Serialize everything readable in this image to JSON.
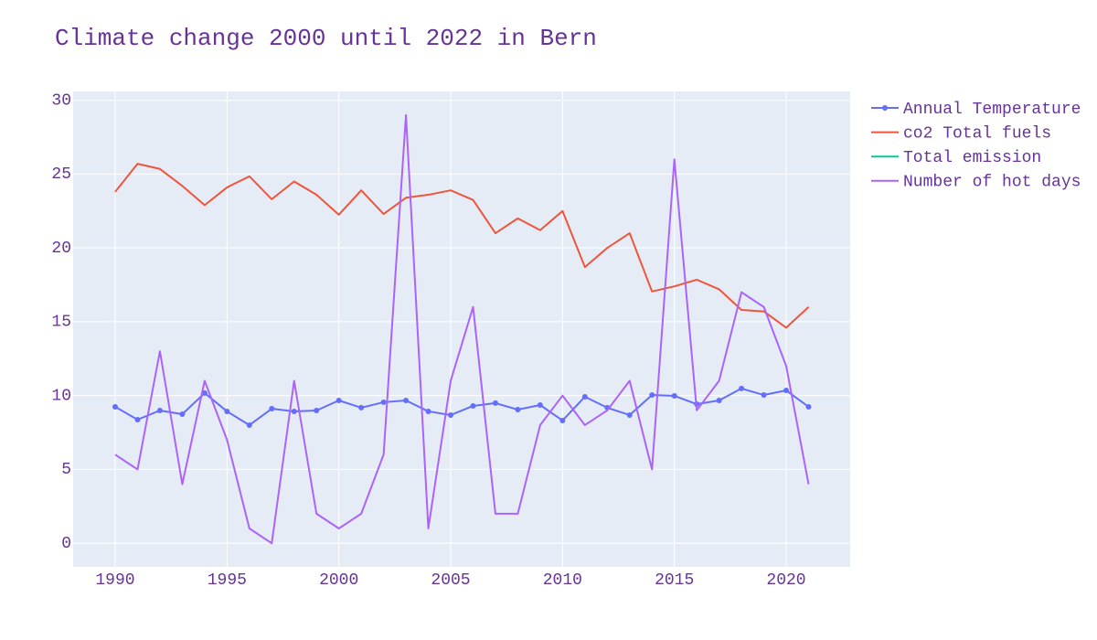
{
  "chart_data": {
    "type": "line",
    "title": "Climate change 2000 until 2022 in Bern",
    "x": [
      1990,
      1991,
      1992,
      1993,
      1994,
      1995,
      1996,
      1997,
      1998,
      1999,
      2000,
      2001,
      2002,
      2003,
      2004,
      2005,
      2006,
      2007,
      2008,
      2009,
      2010,
      2011,
      2012,
      2013,
      2014,
      2015,
      2016,
      2017,
      2018,
      2019,
      2020,
      2021
    ],
    "series": [
      {
        "name": "Annual Temperature",
        "color": "#636efa",
        "markers": true,
        "values": [
          9.24,
          8.37,
          8.99,
          8.74,
          10.17,
          8.93,
          8.0,
          9.11,
          8.93,
          8.99,
          9.67,
          9.18,
          9.55,
          9.67,
          8.93,
          8.68,
          9.3,
          9.49,
          9.05,
          9.36,
          8.31,
          9.92,
          9.18,
          8.68,
          10.04,
          9.98,
          9.42,
          9.67,
          10.48,
          10.04,
          10.35,
          9.24
        ]
      },
      {
        "name": "co2 Total fuels",
        "color": "#EF553B",
        "markers": false,
        "values": [
          23.8,
          25.7,
          25.35,
          24.2,
          22.9,
          24.1,
          24.85,
          23.3,
          24.5,
          23.6,
          22.25,
          23.9,
          22.3,
          23.4,
          23.6,
          23.9,
          23.25,
          21.0,
          22.0,
          21.2,
          22.5,
          18.7,
          20.0,
          21.0,
          17.05,
          17.4,
          17.85,
          17.2,
          15.8,
          15.7,
          14.6,
          16.0
        ]
      },
      {
        "name": "Total emission",
        "color": "#00cc96",
        "markers": false,
        "values": [
          null,
          null,
          null,
          null,
          null,
          null,
          null,
          null,
          null,
          null,
          null,
          null,
          null,
          null,
          null,
          null,
          null,
          null,
          null,
          null,
          null,
          null,
          null,
          null,
          null,
          null,
          null,
          null,
          null,
          null,
          null,
          null
        ]
      },
      {
        "name": "Number of hot days",
        "color": "#ab63fa",
        "markers": false,
        "values": [
          6,
          5,
          13,
          4,
          11,
          7,
          1,
          0,
          11,
          2,
          1,
          2,
          6,
          29,
          1,
          11,
          16,
          2,
          2,
          8,
          10,
          8,
          9,
          11,
          5,
          26,
          9,
          11,
          17,
          16,
          12,
          4
        ]
      }
    ],
    "xlim": [
      1988.12,
      2022.86
    ],
    "xticks": [
      1990,
      1995,
      2000,
      2005,
      2010,
      2015,
      2020
    ],
    "ylim": [
      -1.6,
      30.6
    ],
    "yticks": [
      0,
      5,
      10,
      15,
      20,
      25,
      30
    ],
    "grid": true,
    "legend": "right"
  }
}
